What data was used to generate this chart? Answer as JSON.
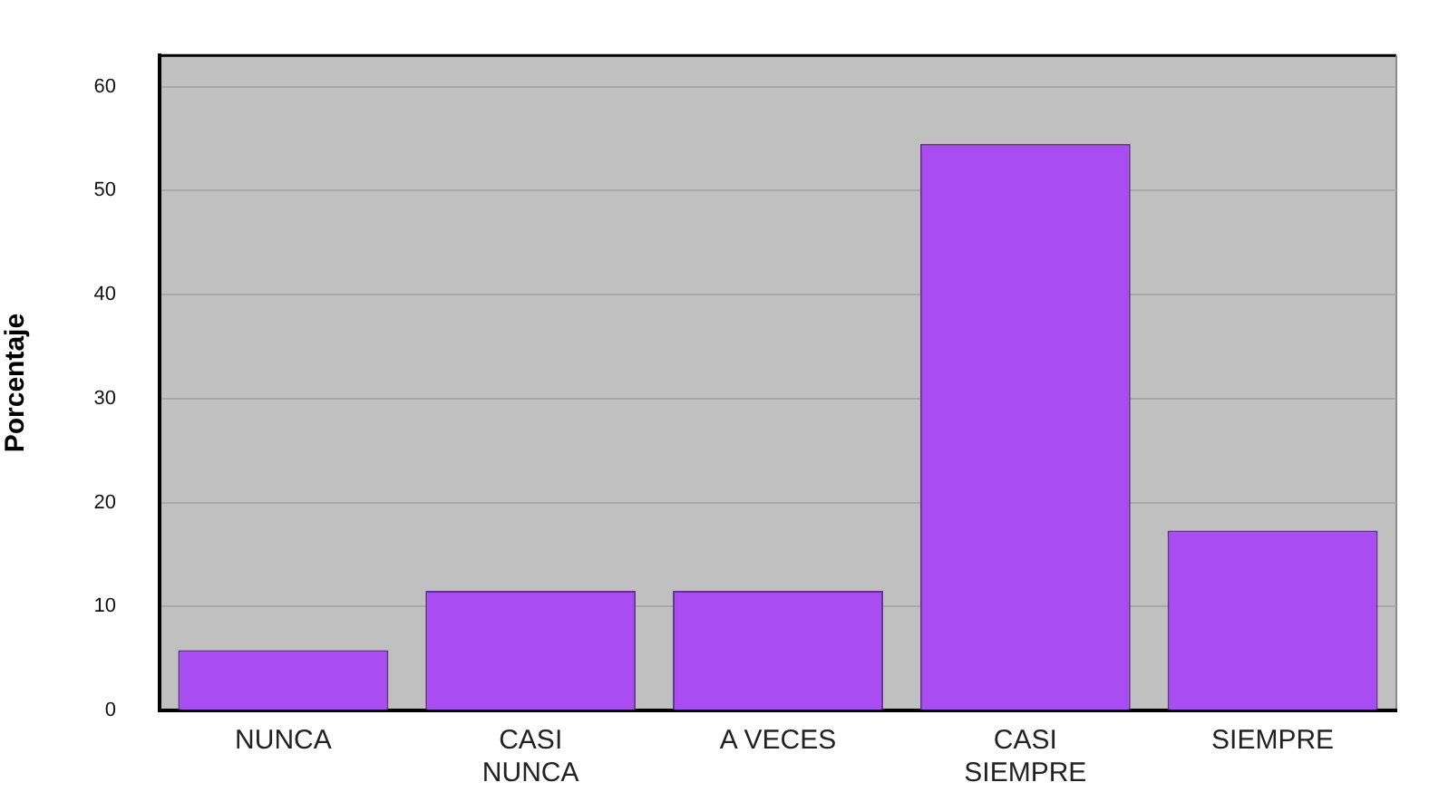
{
  "chart_data": {
    "type": "bar",
    "ylabel": "Porcentaje",
    "categories": [
      "NUNCA",
      "CASI NUNCA",
      "A VECES",
      "CASI SIEMPRE",
      "SIEMPRE"
    ],
    "values": [
      5.8,
      11.5,
      11.5,
      54.5,
      17.3
    ],
    "color": "#a94cf1",
    "ylim": [
      0,
      63
    ],
    "yticks": [
      0,
      10,
      20,
      30,
      40,
      50,
      60
    ],
    "grid": "y"
  }
}
